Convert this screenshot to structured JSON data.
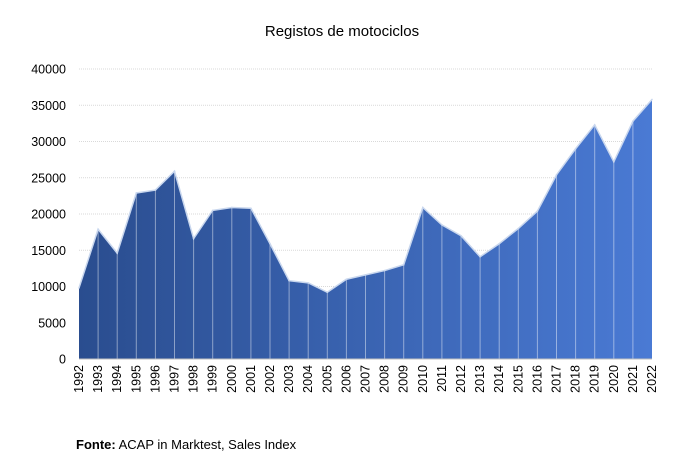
{
  "chart_data": {
    "type": "area",
    "title": "Registos de motociclos",
    "xlabel": "",
    "ylabel": "",
    "x": [
      "1992",
      "1993",
      "1994",
      "1995",
      "1996",
      "1997",
      "1998",
      "1999",
      "2000",
      "2001",
      "2002",
      "2003",
      "2004",
      "2005",
      "2006",
      "2007",
      "2008",
      "2009",
      "2010",
      "2011",
      "2012",
      "2013",
      "2014",
      "2015",
      "2016",
      "2017",
      "2018",
      "2019",
      "2020",
      "2021",
      "2022"
    ],
    "values": [
      9800,
      17900,
      14600,
      22900,
      23300,
      25900,
      16600,
      20500,
      20900,
      20800,
      15900,
      10800,
      10500,
      9200,
      11000,
      11600,
      12200,
      13000,
      20900,
      18500,
      17000,
      14100,
      15900,
      18000,
      20400,
      25400,
      29000,
      32300,
      27200,
      32800,
      35800
    ],
    "ylim": [
      0,
      40000
    ],
    "yticks": [
      "0",
      "5000",
      "10000",
      "15000",
      "20000",
      "25000",
      "30000",
      "35000",
      "40000"
    ],
    "grid": true,
    "legend": "none",
    "colors": {
      "gradient_start": "#2a4d8f",
      "gradient_end": "#4a7ad4",
      "outline": "#c9d7ee",
      "grid": "#d9d9d9"
    }
  },
  "source": {
    "label": "Fonte:",
    "text": " ACAP in Marktest, Sales Index"
  }
}
